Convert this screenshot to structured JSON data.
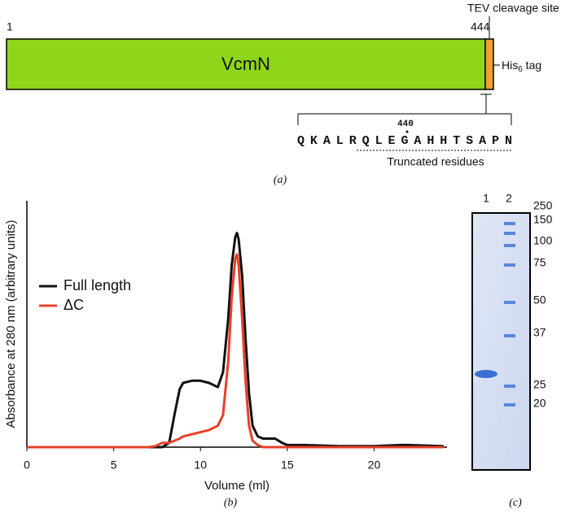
{
  "diagram": {
    "start": "1",
    "end": "444",
    "site": "TEV cleavage site",
    "protein": "VcmN",
    "tag": {
      "text": "His",
      "sub": "6",
      "suffix": " tag"
    },
    "residue": "440",
    "sequence": "QKALRQLEGAHHTSAPN",
    "truncated": "Truncated residues",
    "caption": "(a)"
  },
  "chart_data": {
    "type": "line",
    "xlabel": "Volume (ml)",
    "ylabel": "Absorbance at 280 nm (arbitrary units)",
    "caption": "(b)",
    "x": [
      0,
      2,
      4,
      6,
      7,
      7.4,
      7.8,
      8.2,
      8.5,
      8.8,
      9,
      9.5,
      10,
      10.5,
      11,
      11.3,
      11.6,
      11.8,
      12,
      12.1,
      12.2,
      12.4,
      12.6,
      12.8,
      13,
      13.3,
      13.6,
      14,
      14.3,
      14.7,
      15,
      16,
      18,
      20,
      21.5,
      22,
      24
    ],
    "series": [
      {
        "name": "Full length",
        "color": "#111111",
        "values": [
          0,
          0,
          0,
          0,
          0,
          0,
          0,
          0.02,
          0.15,
          0.27,
          0.3,
          0.31,
          0.31,
          0.3,
          0.28,
          0.35,
          0.6,
          0.85,
          0.98,
          1.0,
          0.97,
          0.8,
          0.5,
          0.25,
          0.1,
          0.05,
          0.04,
          0.04,
          0.04,
          0.02,
          0.01,
          0.01,
          0.005,
          0.005,
          0.01,
          0.01,
          0.005
        ]
      },
      {
        "name": "ΔC",
        "color": "#e8402a",
        "values": [
          0,
          0,
          0,
          0,
          0,
          0.005,
          0.02,
          0.02,
          0.03,
          0.04,
          0.05,
          0.06,
          0.07,
          0.08,
          0.1,
          0.15,
          0.4,
          0.7,
          0.88,
          0.9,
          0.85,
          0.6,
          0.3,
          0.1,
          0.03,
          0.01,
          0,
          0,
          0,
          0,
          0,
          0,
          0,
          0,
          0,
          0,
          0
        ]
      }
    ],
    "xlim": [
      0,
      24.2
    ],
    "xticks": [
      0,
      5,
      10,
      15,
      20
    ],
    "ylim": [
      0,
      1.15
    ],
    "legend": "upper-left"
  },
  "gel": {
    "lanes": [
      "1",
      "2"
    ],
    "markers": [
      "250",
      "150",
      "100",
      "75",
      "50",
      "37",
      "25",
      "20"
    ],
    "caption": "(c)"
  }
}
